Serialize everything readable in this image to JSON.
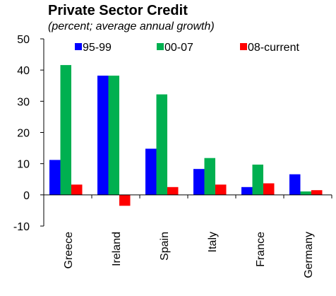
{
  "chart_data": {
    "type": "bar",
    "title": "Private Sector Credit",
    "subtitle": "(percent; average annual growth)",
    "categories": [
      "Greece",
      "Ireland",
      "Spain",
      "Italy",
      "France",
      "Germany"
    ],
    "series": [
      {
        "name": "95-99",
        "color": "#0000ff",
        "values": [
          11.2,
          38.2,
          14.8,
          8.3,
          2.5,
          6.6
        ]
      },
      {
        "name": "00-07",
        "color": "#00b050",
        "values": [
          41.6,
          38.2,
          32.2,
          11.8,
          9.7,
          1.1
        ]
      },
      {
        "name": "08-current",
        "color": "#ff0000",
        "values": [
          3.3,
          -3.5,
          2.5,
          3.3,
          3.7,
          1.5
        ]
      }
    ],
    "ylim": [
      -10,
      50
    ],
    "yticks": [
      "50",
      "40",
      "30",
      "20",
      "10",
      "0",
      "-10"
    ],
    "legend_position": "top",
    "grid": false
  }
}
